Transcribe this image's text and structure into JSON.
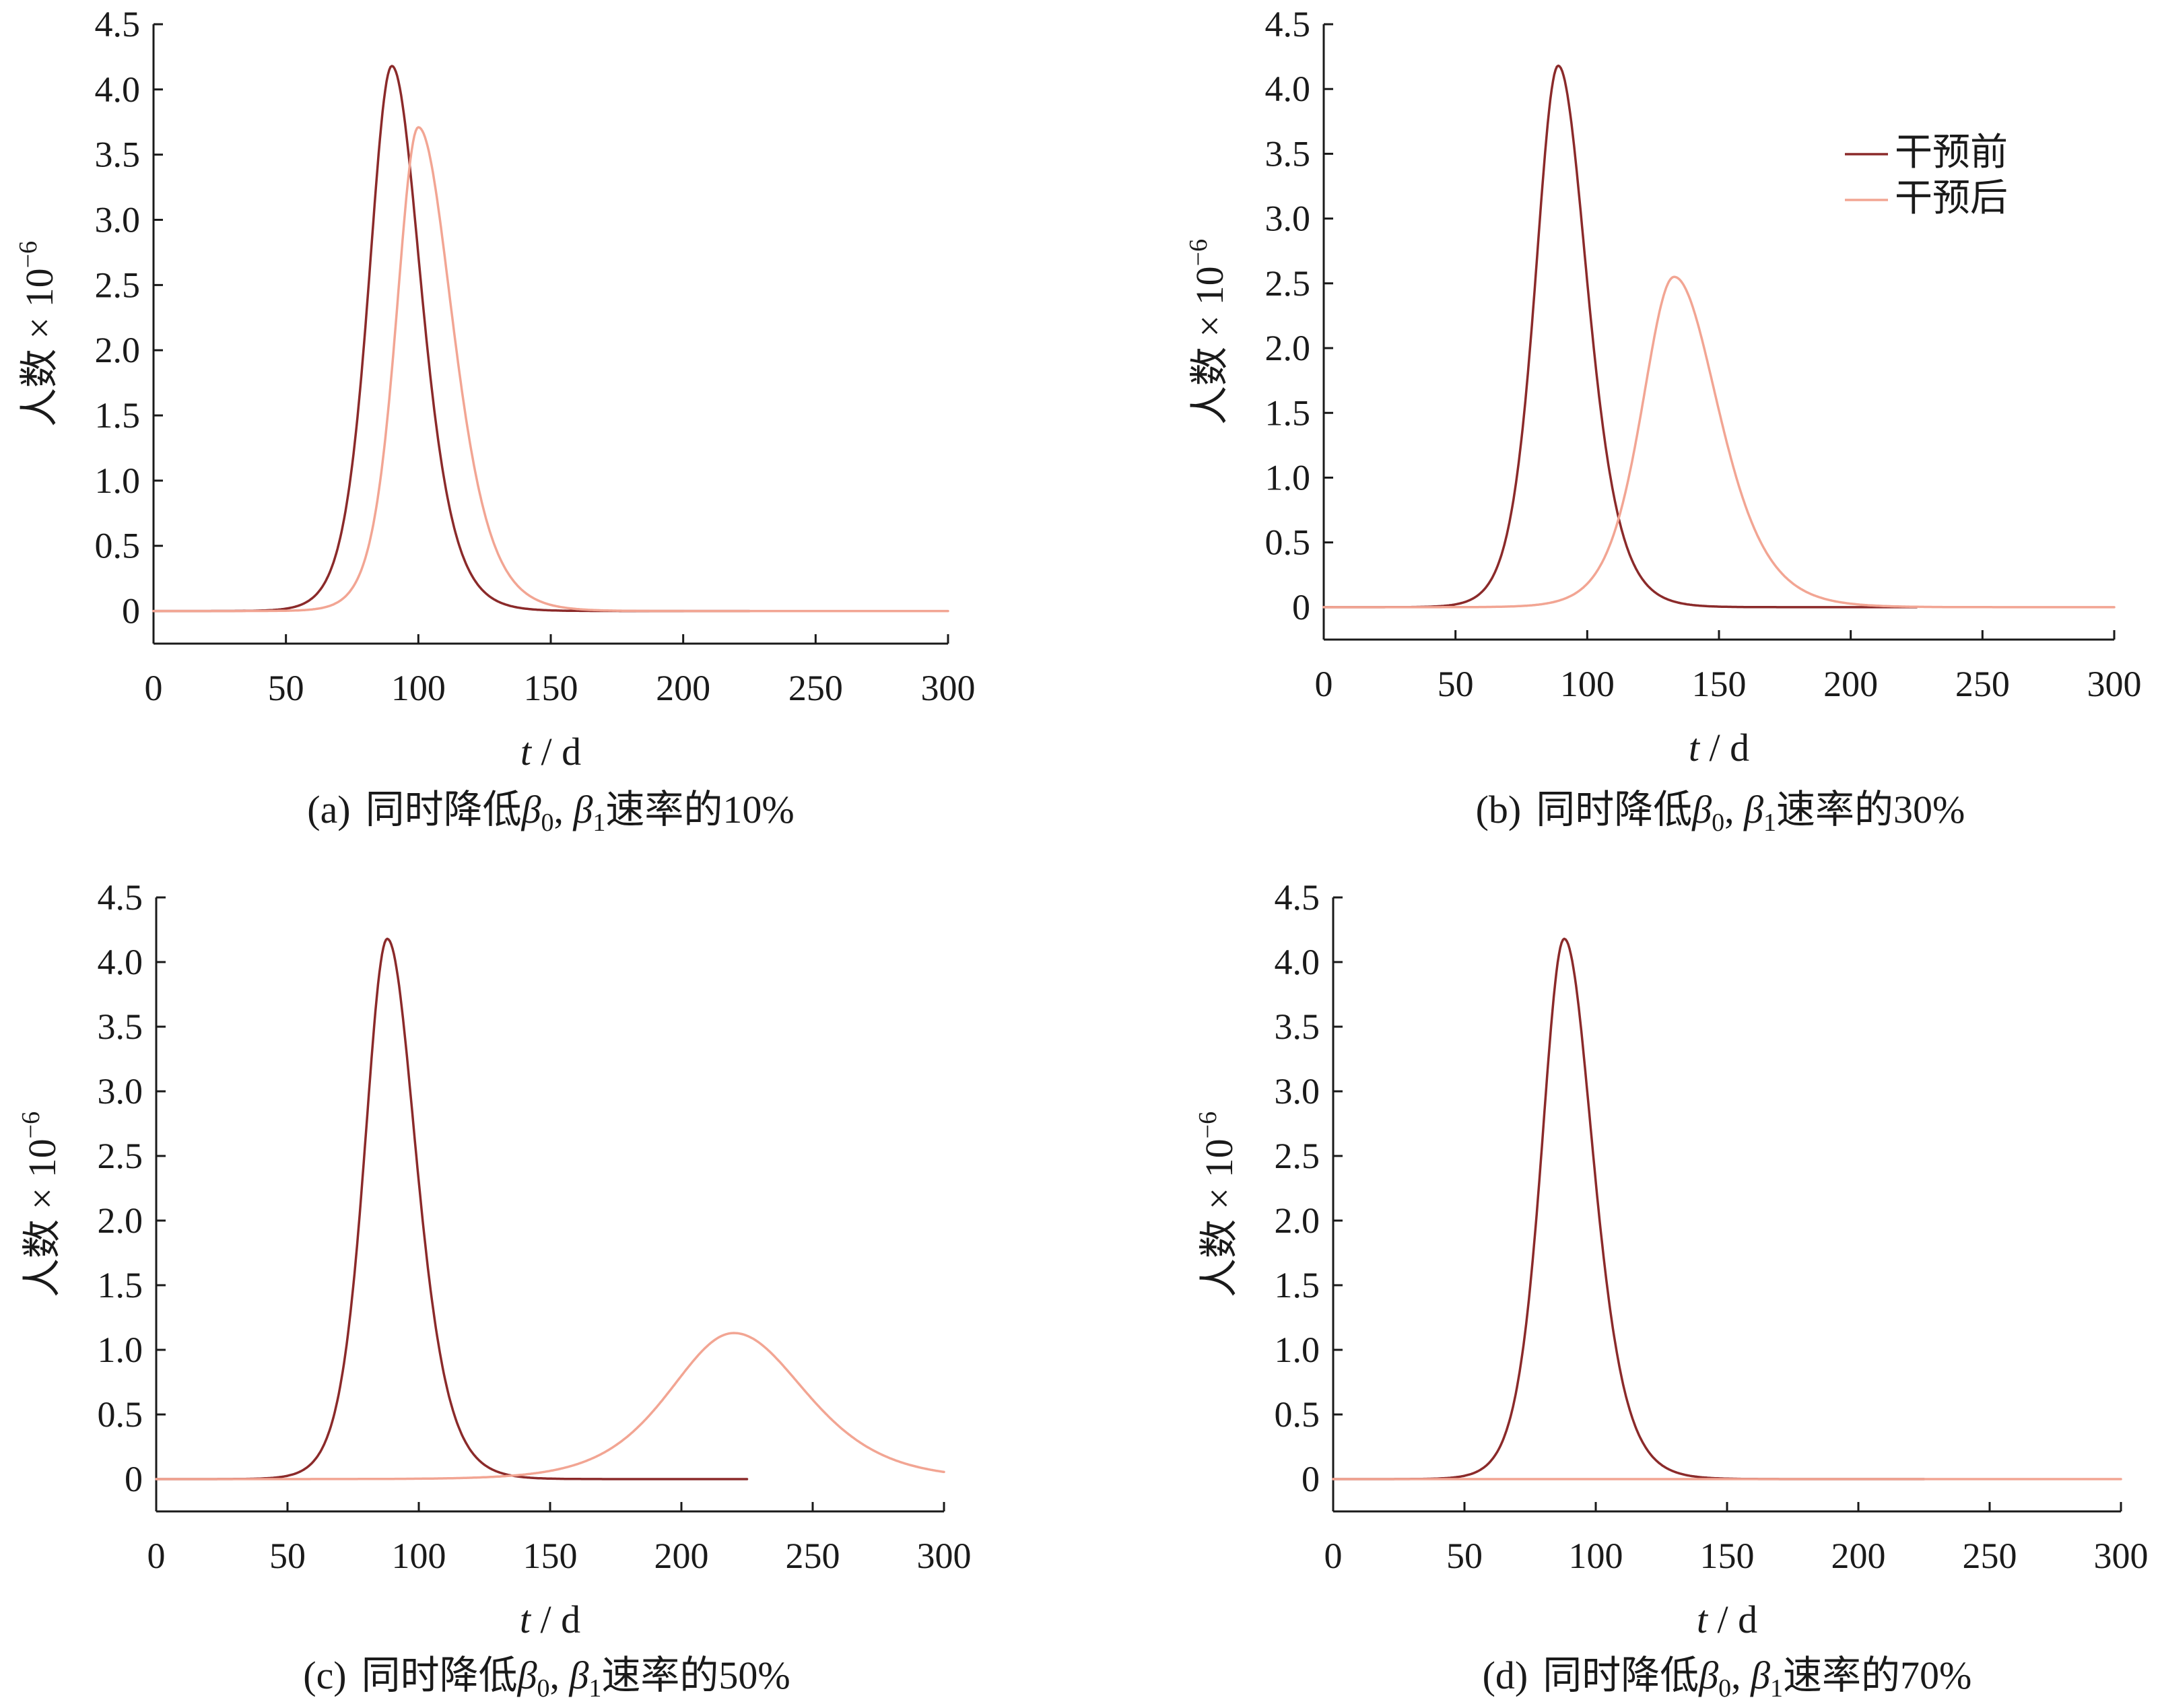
{
  "figure": {
    "colors": {
      "before": "#8b2a2a",
      "after": "#f2a593",
      "axis": "#1a1a1a"
    }
  },
  "chart_data": [
    {
      "panel": "a",
      "type": "line",
      "caption": {
        "tag": "(a)",
        "text": "同时降低",
        "b0": "β",
        "b0_sub": "0",
        "sep": ", ",
        "b1": "β",
        "b1_sub": "1",
        "tail": "速率的10%"
      },
      "xlabel": {
        "var": "t",
        "unit": " / d"
      },
      "ylabel": {
        "main": "人数 × 10",
        "exp": "−6"
      },
      "xlim": [
        0,
        300
      ],
      "ylim": [
        -0.25,
        4.5
      ],
      "xticks": [
        0,
        50,
        100,
        150,
        200,
        250,
        300
      ],
      "yticks": [
        0,
        0.5,
        1.0,
        1.5,
        2.0,
        2.5,
        3.0,
        3.5,
        4.0,
        4.5
      ],
      "ytick_labels": [
        "0",
        "0.5",
        "1.0",
        "1.5",
        "2.0",
        "2.5",
        "3.0",
        "3.5",
        "4.0",
        "4.5"
      ],
      "series": [
        {
          "key": "before",
          "color": "#8b2a2a",
          "x_range": [
            0,
            225
          ],
          "peak_x": 90,
          "peak_y": 4.18,
          "rise_width": 13.5,
          "fall_width": 17
        },
        {
          "key": "after",
          "color": "#f2a593",
          "x_range": [
            0,
            300
          ],
          "peak_x": 100,
          "peak_y": 3.71,
          "rise_width": 13,
          "fall_width": 20
        }
      ],
      "legend": null
    },
    {
      "panel": "b",
      "type": "line",
      "caption": {
        "tag": "(b)",
        "text": "同时降低",
        "b0": "β",
        "b0_sub": "0",
        "sep": ", ",
        "b1": "β",
        "b1_sub": "1",
        "tail": "速率的30%"
      },
      "xlabel": {
        "var": "t",
        "unit": " / d"
      },
      "ylabel": {
        "main": "人数 × 10",
        "exp": "−6"
      },
      "xlim": [
        0,
        300
      ],
      "ylim": [
        -0.25,
        4.5
      ],
      "xticks": [
        0,
        50,
        100,
        150,
        200,
        250,
        300
      ],
      "yticks": [
        0,
        0.5,
        1.0,
        1.5,
        2.0,
        2.5,
        3.0,
        3.5,
        4.0,
        4.5
      ],
      "ytick_labels": [
        "0",
        "0.5",
        "1.0",
        "1.5",
        "2.0",
        "2.5",
        "3.0",
        "3.5",
        "4.0",
        "4.5"
      ],
      "series": [
        {
          "key": "before",
          "color": "#8b2a2a",
          "x_range": [
            0,
            225
          ],
          "peak_x": 89,
          "peak_y": 4.18,
          "rise_width": 13.5,
          "fall_width": 17
        },
        {
          "key": "after",
          "color": "#f2a593",
          "x_range": [
            0,
            300
          ],
          "peak_x": 133,
          "peak_y": 2.55,
          "rise_width": 19,
          "fall_width": 26
        }
      ],
      "legend": {
        "position": "top-right",
        "items": [
          {
            "key": "before",
            "label": "干预前"
          },
          {
            "key": "after",
            "label": "干预后"
          }
        ]
      }
    },
    {
      "panel": "c",
      "type": "line",
      "caption": {
        "tag": "(c)",
        "text": "同时降低",
        "b0": "β",
        "b0_sub": "0",
        "sep": ", ",
        "b1": "β",
        "b1_sub": "1",
        "tail": "速率的50%"
      },
      "xlabel": {
        "var": "t",
        "unit": " / d"
      },
      "ylabel": {
        "main": "人数 × 10",
        "exp": "−6"
      },
      "xlim": [
        0,
        300
      ],
      "ylim": [
        -0.25,
        4.5
      ],
      "xticks": [
        0,
        50,
        100,
        150,
        200,
        250,
        300
      ],
      "yticks": [
        0,
        0.5,
        1.0,
        1.5,
        2.0,
        2.5,
        3.0,
        3.5,
        4.0,
        4.5
      ],
      "ytick_labels": [
        "0",
        "0.5",
        "1.0",
        "1.5",
        "2.0",
        "2.5",
        "3.0",
        "3.5",
        "4.0",
        "4.5"
      ],
      "series": [
        {
          "key": "before",
          "color": "#8b2a2a",
          "x_range": [
            0,
            225
          ],
          "peak_x": 88,
          "peak_y": 4.18,
          "rise_width": 13.5,
          "fall_width": 17
        },
        {
          "key": "after",
          "color": "#f2a593",
          "x_range": [
            0,
            300
          ],
          "peak_x": 220,
          "peak_y": 1.13,
          "rise_width": 38,
          "fall_width": 42
        }
      ],
      "legend": null
    },
    {
      "panel": "d",
      "type": "line",
      "caption": {
        "tag": "(d)",
        "text": "同时降低",
        "b0": "β",
        "b0_sub": "0",
        "sep": ", ",
        "b1": "β",
        "b1_sub": "1",
        "tail": "速率的70%"
      },
      "xlabel": {
        "var": "t",
        "unit": " / d"
      },
      "ylabel": {
        "main": "人数 × 10",
        "exp": "−6"
      },
      "xlim": [
        0,
        300
      ],
      "ylim": [
        -0.25,
        4.5
      ],
      "xticks": [
        0,
        50,
        100,
        150,
        200,
        250,
        300
      ],
      "yticks": [
        0,
        0.5,
        1.0,
        1.5,
        2.0,
        2.5,
        3.0,
        3.5,
        4.0,
        4.5
      ],
      "ytick_labels": [
        "0",
        "0.5",
        "1.0",
        "1.5",
        "2.0",
        "2.5",
        "3.0",
        "3.5",
        "4.0",
        "4.5"
      ],
      "series": [
        {
          "key": "before",
          "color": "#8b2a2a",
          "x_range": [
            0,
            225
          ],
          "peak_x": 88,
          "peak_y": 4.18,
          "rise_width": 13.5,
          "fall_width": 17
        },
        {
          "key": "after",
          "color": "#f2a593",
          "x_range": [
            0,
            300
          ],
          "peak_x": 150,
          "peak_y": 0,
          "rise_width": 20,
          "fall_width": 20
        }
      ],
      "legend": null
    }
  ]
}
